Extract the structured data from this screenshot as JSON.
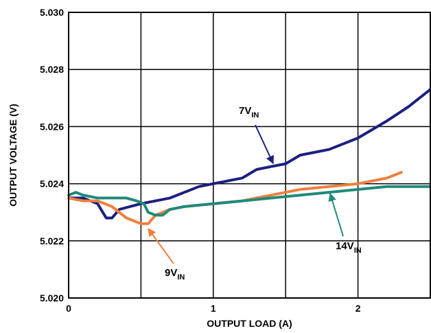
{
  "chart_data": {
    "type": "line",
    "xlabel": "OUTPUT LOAD (A)",
    "ylabel": "OUTPUT VOLTAGE (V)",
    "xlim": [
      0,
      2.5
    ],
    "ylim": [
      5.02,
      5.03
    ],
    "x_ticks": [
      "0",
      "1",
      "2"
    ],
    "y_ticks": [
      "5.020",
      "5.022",
      "5.024",
      "5.026",
      "5.028",
      "5.030"
    ],
    "grid": true,
    "colors": {
      "7V": "#1c1f80",
      "9V": "#f07f3c",
      "14V": "#1f8a7a"
    },
    "series": [
      {
        "name": "7V",
        "x": [
          0,
          0.1,
          0.2,
          0.26,
          0.3,
          0.35,
          0.5,
          0.7,
          0.9,
          1.0,
          1.1,
          1.2,
          1.3,
          1.4,
          1.5,
          1.6,
          1.8,
          2.0,
          2.2,
          2.35,
          2.5
        ],
        "y": [
          5.0235,
          5.0235,
          5.0233,
          5.0228,
          5.0228,
          5.0231,
          5.0233,
          5.0235,
          5.0239,
          5.024,
          5.0241,
          5.0242,
          5.0245,
          5.0246,
          5.0247,
          5.025,
          5.0252,
          5.0256,
          5.0262,
          5.0267,
          5.0273
        ]
      },
      {
        "name": "9V",
        "x": [
          0,
          0.1,
          0.2,
          0.3,
          0.4,
          0.5,
          0.55,
          0.6,
          0.7,
          0.8,
          1.0,
          1.2,
          1.4,
          1.6,
          1.8,
          2.0,
          2.2,
          2.3
        ],
        "y": [
          5.0235,
          5.0234,
          5.0234,
          5.0232,
          5.0228,
          5.0226,
          5.0226,
          5.0229,
          5.0231,
          5.0232,
          5.0233,
          5.0234,
          5.0236,
          5.0238,
          5.0239,
          5.024,
          5.0242,
          5.0244
        ]
      },
      {
        "name": "14V",
        "x": [
          0,
          0.05,
          0.1,
          0.2,
          0.3,
          0.4,
          0.47,
          0.52,
          0.55,
          0.6,
          0.65,
          0.7,
          0.8,
          1.0,
          1.2,
          1.4,
          1.6,
          1.8,
          2.0,
          2.2,
          2.5
        ],
        "y": [
          5.0236,
          5.0237,
          5.0236,
          5.0235,
          5.0235,
          5.0235,
          5.0234,
          5.0233,
          5.023,
          5.0229,
          5.0229,
          5.0231,
          5.0232,
          5.0233,
          5.0234,
          5.0235,
          5.0236,
          5.0237,
          5.0238,
          5.0239,
          5.0239
        ]
      }
    ],
    "annotations": [
      {
        "series": "7V",
        "main": "7V",
        "sub": "IN"
      },
      {
        "series": "9V",
        "main": "9V",
        "sub": "IN"
      },
      {
        "series": "14V",
        "main": "14V",
        "sub": "IN"
      }
    ]
  }
}
